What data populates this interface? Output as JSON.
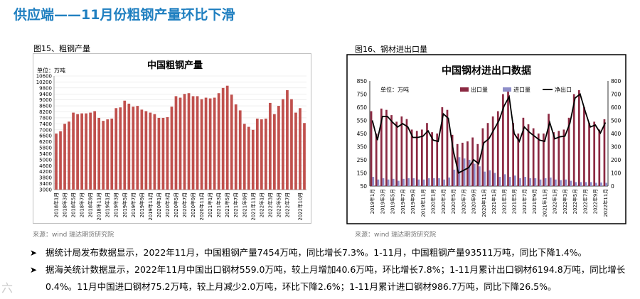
{
  "page": {
    "title": "供应端——11月份粗钢产量环比下滑",
    "watermark": "六"
  },
  "captions": {
    "fig15": "图15、粗钢产量",
    "fig16": "图16、钢材进出口量"
  },
  "sources": {
    "fig15": "来源：wind   瑞达期货研究院",
    "fig16": "来源：wind   瑞达期货研究院"
  },
  "bullets": [
    {
      "marker": "➤",
      "text": "据统计局发布数据显示，2022年11月，中国粗钢产量7454万吨，同比增长7.3%。1-11月，中国粗钢产量93511万吨，同比下降1.4%。"
    },
    {
      "marker": "➤",
      "text": "据海关统计数据显示，2022年11月中国出口钢材559.0万吨，较上月增加40.6万吨，环比增长7.8%；1-11月累计出口钢材6194.8万吨，同比增长0.4%。11月中国进口钢材75.2万吨，较上月减少2.0万吨，环比下降2.6%；1-11月累计进口钢材986.7万吨，同比下降26.5%。"
    }
  ],
  "chart_data": [
    {
      "type": "bar",
      "title": "中国粗钢产量",
      "unit_label": "单位：万吨",
      "color": "#c0504d",
      "ylim": [
        3000,
        10600
      ],
      "yticks": [
        3000,
        3400,
        3800,
        4200,
        4600,
        5000,
        5400,
        5800,
        6200,
        6600,
        7000,
        7400,
        7800,
        8200,
        8600,
        9000,
        9400,
        9800,
        10200,
        10600
      ],
      "xtick_labels": [
        "2018年1月",
        "2018年3月",
        "2018年5月",
        "2018年7月",
        "2018年9月",
        "2018年11月",
        "2019年1月",
        "2019年3月",
        "2019年5月",
        "2019年7月",
        "2019年9月",
        "2019年11月",
        "2020年1月",
        "2020年3月",
        "2020年5月",
        "2020年7月",
        "2020年9月",
        "2020年11月",
        "2021年1月",
        "2021年3月",
        "2021年5月",
        "2021年7月",
        "2021年9月",
        "2021年11月",
        "2022年1月",
        "2022年3月",
        "2022年5月",
        "2022年7月",
        "2022年10月"
      ],
      "categories": [
        "2018-01",
        "2018-02",
        "2018-03",
        "2018-04",
        "2018-05",
        "2018-06",
        "2018-07",
        "2018-08",
        "2018-09",
        "2018-10",
        "2018-11",
        "2018-12",
        "2019-01",
        "2019-02",
        "2019-03",
        "2019-04",
        "2019-05",
        "2019-06",
        "2019-07",
        "2019-08",
        "2019-09",
        "2019-10",
        "2019-11",
        "2019-12",
        "2020-01",
        "2020-02",
        "2020-03",
        "2020-04",
        "2020-05",
        "2020-06",
        "2020-07",
        "2020-08",
        "2020-09",
        "2020-10",
        "2020-11",
        "2020-12",
        "2021-01",
        "2021-02",
        "2021-03",
        "2021-04",
        "2021-05",
        "2021-06",
        "2021-07",
        "2021-08",
        "2021-09",
        "2021-10",
        "2021-11",
        "2021-12",
        "2022-01",
        "2022-02",
        "2022-03",
        "2022-04",
        "2022-05",
        "2022-06",
        "2022-07",
        "2022-08",
        "2022-09",
        "2022-10",
        "2022-11"
      ],
      "values": [
        6750,
        6900,
        7400,
        7550,
        8150,
        8050,
        8100,
        8100,
        8150,
        8250,
        7800,
        7600,
        7700,
        7750,
        8450,
        8500,
        8950,
        8750,
        8550,
        8600,
        8350,
        8250,
        8150,
        8050,
        7800,
        7800,
        7850,
        8550,
        9250,
        9150,
        9400,
        9450,
        9250,
        9250,
        9050,
        9150,
        9100,
        9150,
        9450,
        9800,
        9950,
        9350,
        8700,
        8300,
        7400,
        7200,
        7000,
        7750,
        7700,
        7750,
        8800,
        8050,
        8600,
        9050,
        9650,
        9050,
        8150,
        8450,
        7454
      ]
    },
    {
      "type": "bar+line",
      "title": "中国钢材进出口数据",
      "unit_label": "单位：万吨",
      "ylim_left": [
        50,
        850
      ],
      "yticks_left": [
        50,
        150,
        250,
        350,
        450,
        550,
        650,
        750,
        850
      ],
      "ylim_right": [
        0,
        800
      ],
      "yticks_right": [
        0,
        100,
        200,
        300,
        400,
        500,
        600,
        700,
        800
      ],
      "legend": [
        {
          "name": "出口量",
          "color": "#8b2942"
        },
        {
          "name": "进口量",
          "color": "#8e8ec9"
        },
        {
          "name": "净出口",
          "color": "#000000"
        }
      ],
      "xtick_labels": [
        "2019年1月",
        "2019年3月",
        "2019年5月",
        "2019年7月",
        "2019年9月",
        "2019年11月",
        "2020年1月",
        "2020年3月",
        "2020年5月",
        "2020年7月",
        "2020年9月",
        "2020年11月",
        "2021年1月",
        "2021年3月",
        "2021年5月",
        "2021年7月",
        "2021年9月",
        "2021年11月",
        "2022年1月",
        "2022年3月",
        "2022年5月",
        "2022年7月",
        "2022年9月",
        "2022年11月"
      ],
      "categories": [
        "2019-01",
        "2019-02",
        "2019-03",
        "2019-04",
        "2019-05",
        "2019-06",
        "2019-07",
        "2019-08",
        "2019-09",
        "2019-10",
        "2019-11",
        "2019-12",
        "2020-01",
        "2020-02",
        "2020-03",
        "2020-04",
        "2020-05",
        "2020-06",
        "2020-07",
        "2020-08",
        "2020-09",
        "2020-10",
        "2020-11",
        "2020-12",
        "2021-01",
        "2021-02",
        "2021-03",
        "2021-04",
        "2021-05",
        "2021-06",
        "2021-07",
        "2021-08",
        "2021-09",
        "2021-10",
        "2021-11",
        "2021-12",
        "2022-01",
        "2022-02",
        "2022-03",
        "2022-04",
        "2022-05",
        "2022-06",
        "2022-07",
        "2022-08",
        "2022-09",
        "2022-10",
        "2022-11"
      ],
      "series": [
        {
          "name": "出口量",
          "axis": "left",
          "values": [
            620,
            450,
            640,
            630,
            590,
            540,
            580,
            560,
            480,
            470,
            480,
            530,
            460,
            450,
            650,
            630,
            440,
            370,
            380,
            390,
            420,
            370,
            490,
            530,
            580,
            620,
            750,
            800,
            530,
            450,
            570,
            520,
            490,
            450,
            450,
            600,
            460,
            470,
            480,
            570,
            750,
            780,
            650,
            530,
            540,
            480,
            559
          ]
        },
        {
          "name": "进口量",
          "axis": "left",
          "values": [
            120,
            100,
            110,
            100,
            105,
            90,
            105,
            110,
            110,
            100,
            100,
            110,
            110,
            110,
            100,
            115,
            175,
            270,
            260,
            250,
            220,
            200,
            160,
            170,
            150,
            120,
            140,
            120,
            130,
            110,
            120,
            110,
            110,
            100,
            110,
            115,
            100,
            95,
            100,
            90,
            80,
            80,
            80,
            80,
            75,
            77,
            75
          ]
        },
        {
          "name": "净出口",
          "axis": "right",
          "values": [
            500,
            350,
            530,
            530,
            485,
            450,
            475,
            450,
            370,
            370,
            380,
            420,
            350,
            340,
            550,
            515,
            265,
            100,
            120,
            140,
            200,
            170,
            330,
            360,
            430,
            500,
            610,
            680,
            400,
            340,
            450,
            410,
            380,
            350,
            340,
            485,
            360,
            375,
            380,
            480,
            670,
            700,
            570,
            450,
            465,
            403,
            484
          ]
        }
      ]
    }
  ]
}
